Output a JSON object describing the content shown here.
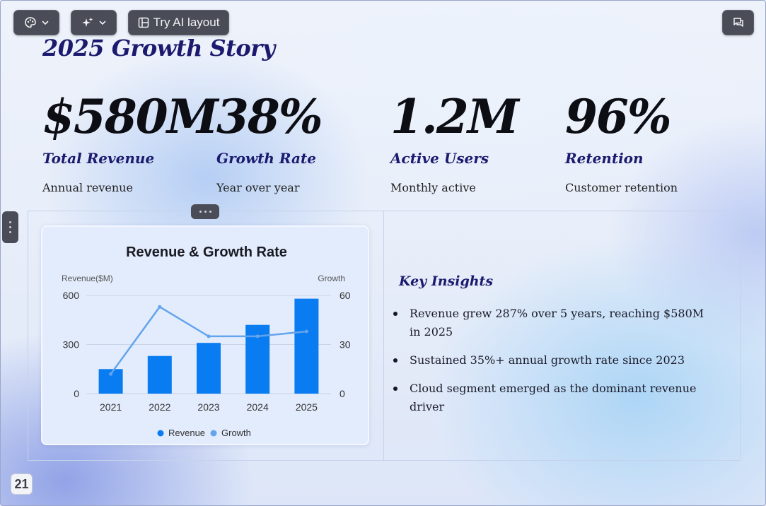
{
  "toolbar": {
    "theme_icon": "palette-icon",
    "ai_icon": "sparkles-icon",
    "dropdown_icon": "chevron-down-icon",
    "layout_icon": "layout-icon",
    "try_ai_label": "Try AI layout",
    "comments_icon": "comments-icon"
  },
  "slide": {
    "title": "2025 Growth Story",
    "stats": [
      {
        "value": "$580M",
        "label": "Total Revenue",
        "desc": "Annual revenue"
      },
      {
        "value": "38%",
        "label": "Growth Rate",
        "desc": "Year over year"
      },
      {
        "value": "1.2M",
        "label": "Active Users",
        "desc": "Monthly active"
      },
      {
        "value": "96%",
        "label": "Retention",
        "desc": "Customer retention"
      }
    ],
    "insights_title": "Key Insights",
    "insights": [
      "Revenue grew 287% over 5 years, reaching $580M in 2025",
      "Sustained 35%+ annual growth rate since 2023",
      "Cloud segment emerged as the dominant revenue driver"
    ],
    "page_number": "21"
  },
  "colors": {
    "accent": "#1b1a6e",
    "bar": "#0a7cf2",
    "line": "#63a4ec"
  },
  "chart_data": {
    "type": "bar",
    "title": "Revenue & Growth Rate",
    "categories": [
      "2021",
      "2022",
      "2023",
      "2024",
      "2025"
    ],
    "series": [
      {
        "name": "Revenue",
        "type": "bar",
        "axis": "left",
        "values": [
          150,
          230,
          310,
          420,
          580
        ]
      },
      {
        "name": "Growth",
        "type": "line",
        "axis": "right",
        "values": [
          12,
          53,
          35,
          35,
          38
        ]
      }
    ],
    "ylabel": "Revenue($M)",
    "y2label": "Growth",
    "ylim": [
      0,
      600
    ],
    "y2lim": [
      0,
      60
    ],
    "yticks": [
      "0",
      "300",
      "600"
    ],
    "y2ticks": [
      "0",
      "30",
      "60"
    ],
    "grid": true,
    "legend": "bottom"
  }
}
